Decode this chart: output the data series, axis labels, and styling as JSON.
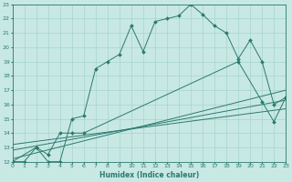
{
  "xlabel": "Humidex (Indice chaleur)",
  "xlim": [
    0,
    23
  ],
  "ylim": [
    12,
    23
  ],
  "xticks": [
    0,
    1,
    2,
    3,
    4,
    5,
    6,
    7,
    8,
    9,
    10,
    11,
    12,
    13,
    14,
    15,
    16,
    17,
    18,
    19,
    20,
    21,
    22,
    23
  ],
  "yticks": [
    12,
    13,
    14,
    15,
    16,
    17,
    18,
    19,
    20,
    21,
    22,
    23
  ],
  "bg_color": "#c8e8e4",
  "line_color": "#2a7a6e",
  "grid_color": "#9dcfca",
  "line1_x": [
    0,
    1,
    2,
    3,
    4,
    5,
    6,
    7,
    8,
    9,
    10,
    11,
    12,
    13,
    14,
    15,
    16,
    17,
    18,
    19,
    20,
    21,
    22,
    23
  ],
  "line1_y": [
    12,
    12,
    13,
    12,
    12,
    15,
    15.2,
    18.5,
    19,
    19.5,
    21.5,
    19.7,
    21.8,
    22,
    22.2,
    23,
    22.3,
    21.5,
    21.0,
    19.2,
    20.5,
    19.0,
    16.0,
    16.5
  ],
  "line2_x": [
    0,
    2,
    3,
    4,
    5,
    6,
    19,
    21,
    22,
    23
  ],
  "line2_y": [
    12,
    13,
    12.5,
    14,
    14,
    14,
    19,
    16.2,
    14.8,
    16.5
  ],
  "line3_x": [
    0,
    23
  ],
  "line3_y": [
    12.2,
    17.0
  ],
  "line4_x": [
    0,
    23
  ],
  "line4_y": [
    12.8,
    16.3
  ],
  "line5_x": [
    0,
    23
  ],
  "line5_y": [
    13.2,
    15.7
  ]
}
